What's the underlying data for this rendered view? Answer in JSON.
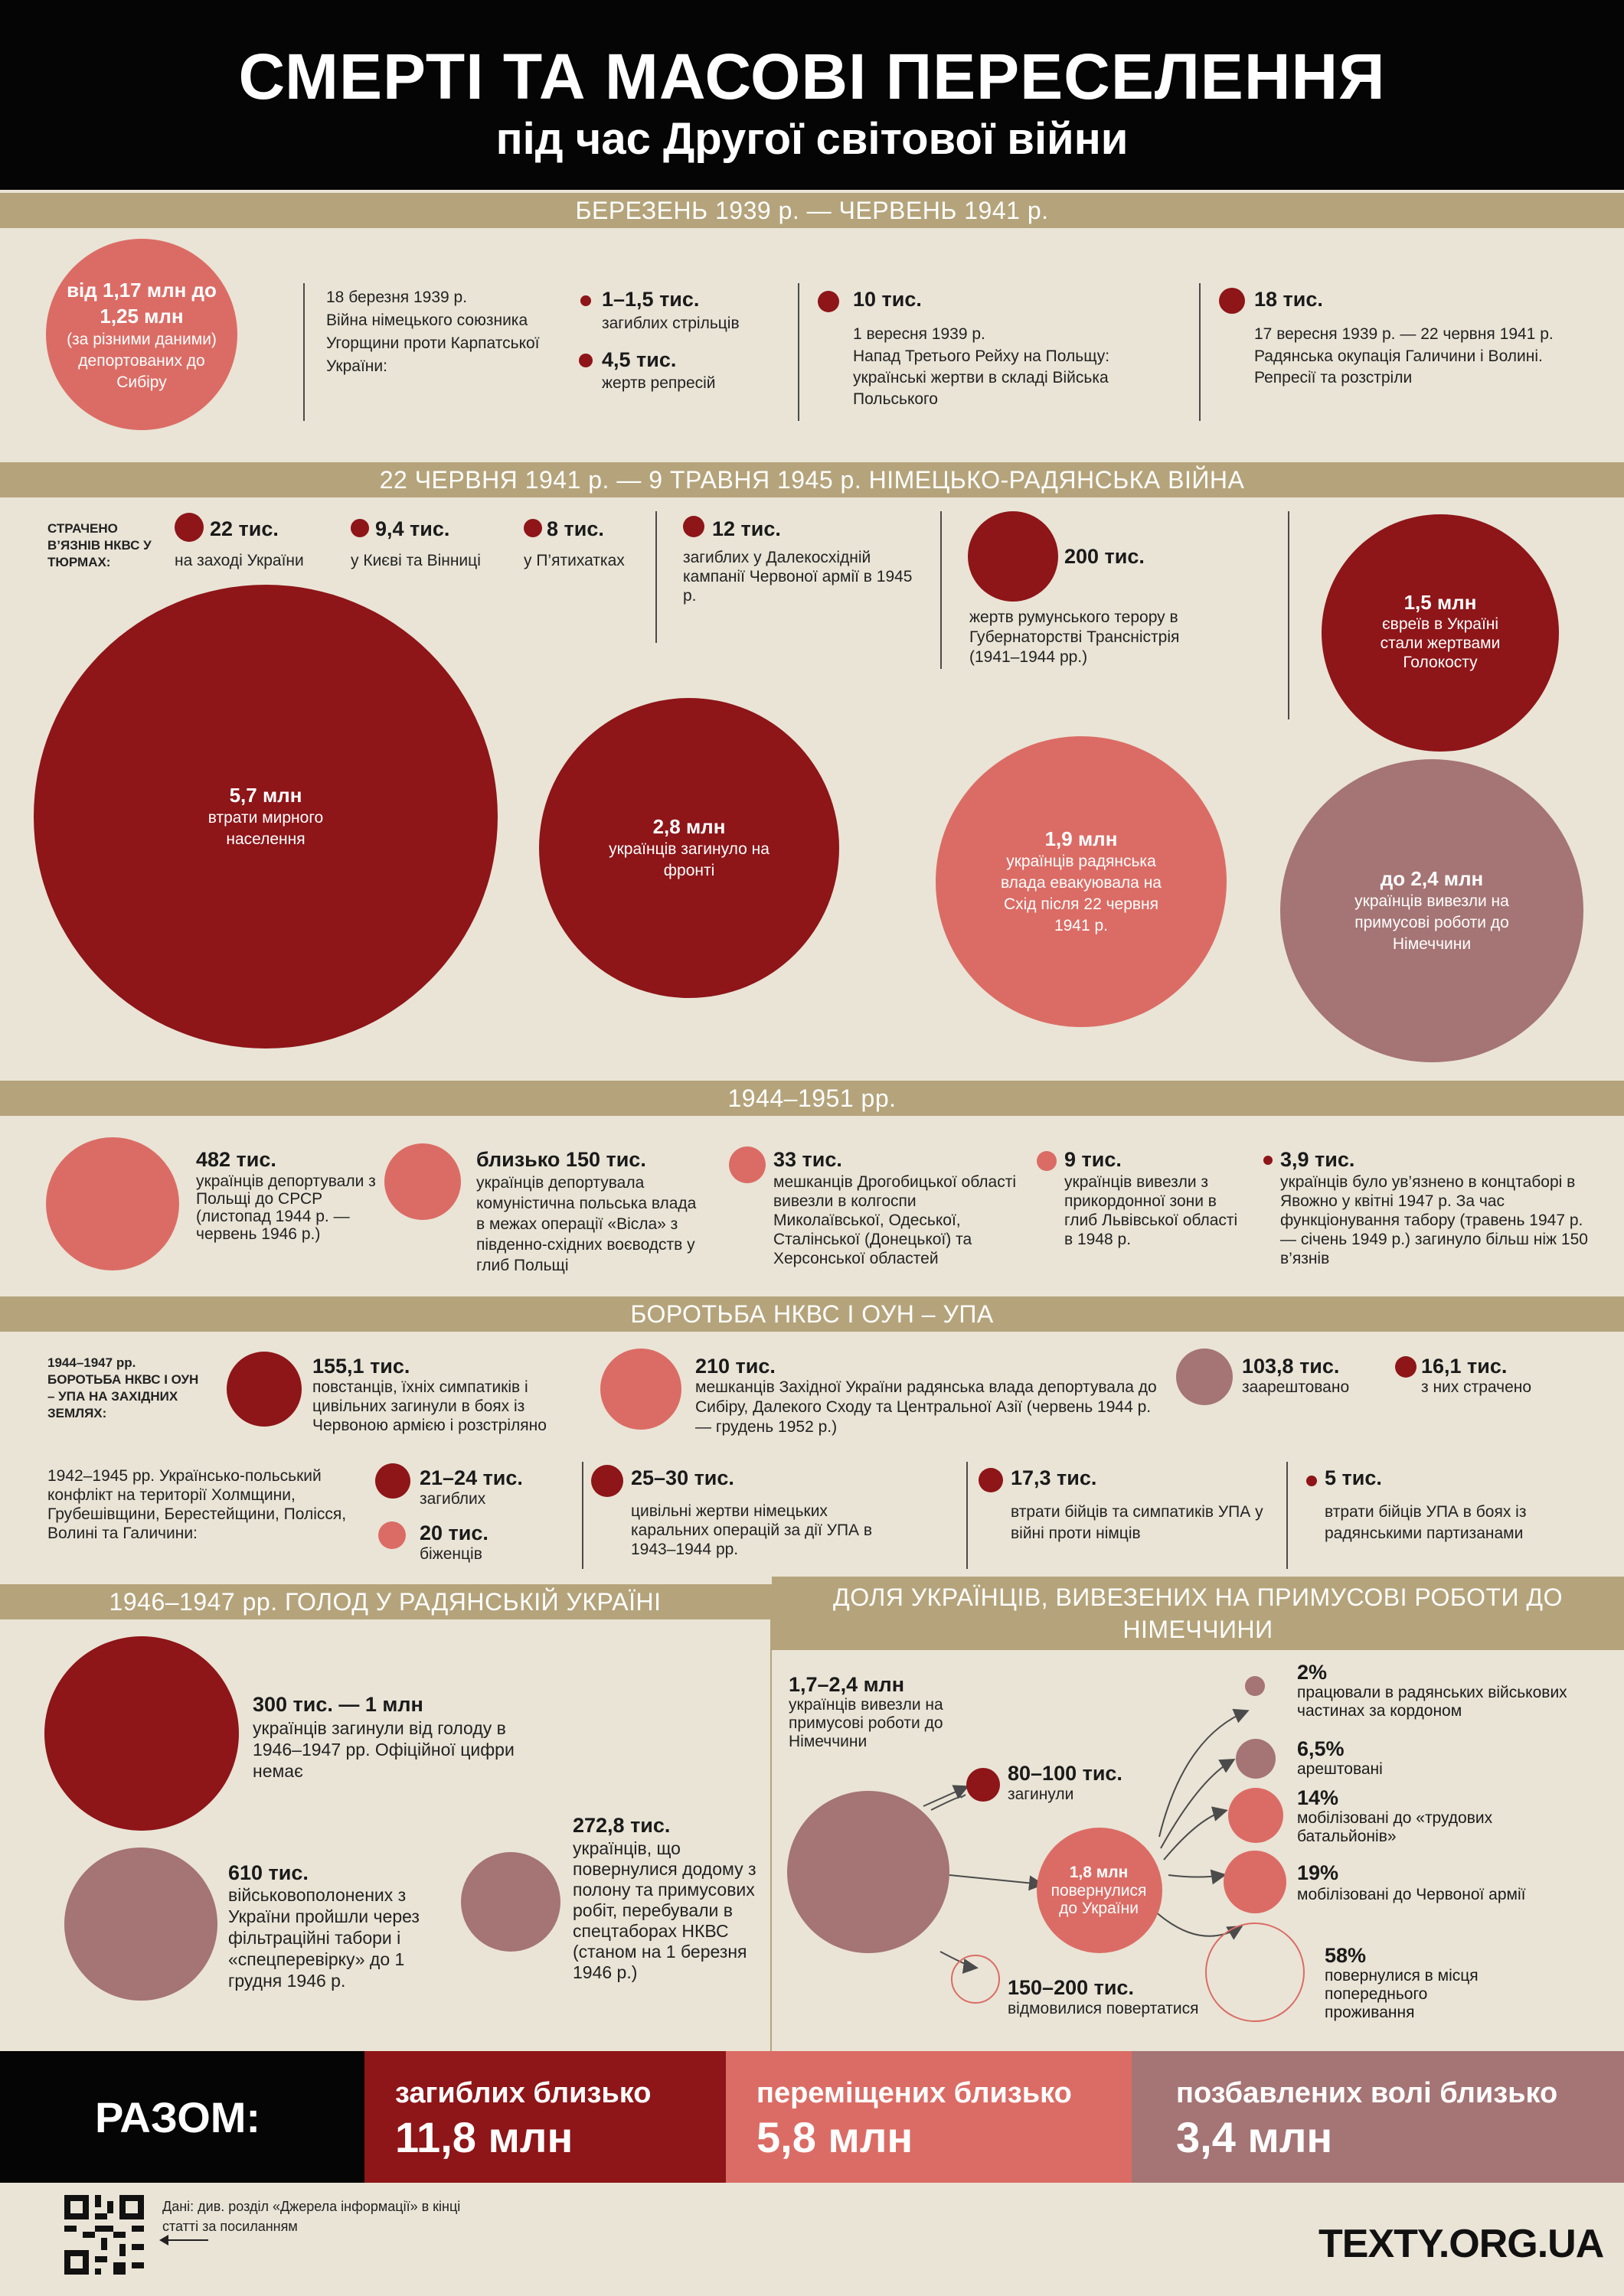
{
  "header": {
    "title": "СМЕРТІ ТА МАСОВІ ПЕРЕСЕЛЕННЯ",
    "subtitle": "під час Другої світової війни"
  },
  "section1": {
    "band": "БЕРЕЗЕНЬ 1939 р. — ЧЕРВЕНЬ 1941 р.",
    "deported_num": "від 1,17 млн до 1,25 млн",
    "deported_note": "(за різними даними)",
    "deported_label": "депортованих до Сибіру",
    "carpatho_date": "18 березня 1939 р.",
    "carpatho_text": "Війна німецького союзника Угорщини проти Карпатської України:",
    "riflemen_num": "1–1,5 тис.",
    "riflemen_label": "загиблих стрільців",
    "repr_num": "4,5 тис.",
    "repr_label": "жертв репресій",
    "poland_num": "10 тис.",
    "poland_date": "1 вересня 1939 р.",
    "poland_text": "Напад Третього Рейху на Польщу: українські жертви в складі Війська Польського",
    "occupation_num": "18 тис.",
    "occupation_date": "17 вересня 1939 р. — 22 червня 1941 р.",
    "occupation_text": "Радянська окупація Галичини і Волині. Репресії та розстріли"
  },
  "section2": {
    "band": "22 ЧЕРВНЯ 1941 р. — 9 ТРАВНЯ 1945 р. НІМЕЦЬКО-РАДЯНСЬКА ВІЙНА",
    "nkvd_title": "СТРАЧЕНО В’ЯЗНІВ НКВС У ТЮРМАХ:",
    "west_num": "22 тис.",
    "west_label": "на заході України",
    "kyiv_num": "9,4 тис.",
    "kyiv_label": "у Києві та Вінниці",
    "pyat_num": "8 тис.",
    "pyat_label": "у П’ятихатках",
    "fareast_num": "12 тис.",
    "fareast_label": "загиблих у Далекосхідній кампанії Червоної армії в 1945 р.",
    "romanian_num": "200 тис.",
    "romanian_label": "жертв румунського терору в Губернаторстві Трансністрія (1941–1944 рр.)",
    "holocaust_num": "1,5 млн",
    "holocaust_label": "євреїв в Україні стали жертвами Голокосту",
    "civil_num": "5,7 млн",
    "civil_label": "втрати мирного населення",
    "front_num": "2,8 млн",
    "front_label": "українців загинуло на фронті",
    "evac_num": "1,9 млн",
    "evac_label": "українців радянська влада евакуювала на Схід після 22 червня 1941 р.",
    "forced_num": "до 2,4 млн",
    "forced_label": "українців вивезли на примусові роботи до Німеччини"
  },
  "section3": {
    "band": "1944–1951 рр.",
    "items": [
      {
        "num": "482 тис.",
        "label": "українців депортували з Польщі до СРСР (листопад 1944 р. — червень 1946 р.)"
      },
      {
        "num": "близько 150 тис.",
        "label": "українців депортувала комуністична польська влада в межах операції «Вісла» з південно-східних воєводств у глиб Польщі"
      },
      {
        "num": "33 тис.",
        "label": "мешканців Дрогобицької області вивезли в колгоспи Миколаївської, Одеської, Сталінської (Донецької) та Херсонської областей"
      },
      {
        "num": "9 тис.",
        "label": "українців вивезли з прикордонної зони в глиб Львівської області в 1948 р."
      },
      {
        "num": "3,9 тис.",
        "label": "українців було ув’язнено в концтаборі в Явожно у квітні 1947 р. За час функціонування табору (травень 1947 р. — січень 1949 р.) загинуло більш ніж 150 в’язнів"
      }
    ]
  },
  "section4": {
    "band": "БОРОТЬБА НКВС І ОУН – УПА",
    "left_title": "1944–1947 рр. БОРОТЬБА НКВС І ОУН – УПА НА ЗАХІДНИХ ЗЕМЛЯХ:",
    "rebels_num": "155,1 тис.",
    "rebels_label": "повстанців, їхніх симпатиків і цивільних загинули в боях із Червоною армією і розстріляно",
    "deported_num": "210 тис.",
    "deported_label": "мешканців Західної України радянська влада депортувала до Сибіру, Далекого Сходу та Центральної Азії (червень 1944 р. — грудень 1952 р.)",
    "arrested_num": "103,8 тис.",
    "arrested_label": "заарештовано",
    "executed_num": "16,1 тис.",
    "executed_label": "з них страчено",
    "conflict_title": "1942–1945 рр. Українсько-польський конфлікт на території Холмщини, Грубешівщини, Берестейщини, Полісся, Волині та Галичини:",
    "dead_num": "21–24 тис.",
    "dead_label": "загиблих",
    "refugees_num": "20 тис.",
    "refugees_label": "біженців",
    "german_num": "25–30 тис.",
    "german_label": "цивільні жертви німецьких каральних операцій за дії УПА в 1943–1944 рр.",
    "upa_ger_num": "17,3 тис.",
    "upa_ger_label": "втрати бійців та симпатиків УПА у війні проти німців",
    "upa_part_num": "5 тис.",
    "upa_part_label": "втрати бійців УПА в боях із радянськими партизанами"
  },
  "section5": {
    "band": "1946–1947 рр. ГОЛОД У РАДЯНСЬКІЙ УКРАЇНІ",
    "famine_num": "300 тис. — 1 млн",
    "famine_label": "українців загинули від голоду в 1946–1947 рр. Офіційної цифри немає",
    "pow_num": "610 тис.",
    "pow_label": "військовополонених з України пройшли через фільтраційні табори і «спецперевірку» до 1 грудня 1946 р.",
    "returned_num": "272,8 тис.",
    "returned_label": "українців, що повернулися додому з полону та примусових робіт, перебували в спецтаборах НКВС (станом на 1 березня 1946 р.)"
  },
  "section6": {
    "band": "ДОЛЯ УКРАЇНЦІВ, ВИВЕЗЕНИХ НА ПРИМУСОВІ РОБОТИ ДО НІМЕЧЧИНИ",
    "total_num": "1,7–2,4 млн",
    "total_label": "українців вивезли на примусові роботи до Німеччини",
    "died_num": "80–100 тис.",
    "died_label": "загинули",
    "refused_num": "150–200 тис.",
    "refused_label": "відмовилися повертатися",
    "back_num": "1,8 млн",
    "back_label": "повернулися до України",
    "shares": [
      {
        "pct": "2%",
        "label": "працювали в радянських військових частинах за кордоном"
      },
      {
        "pct": "6,5%",
        "label": "арештовані"
      },
      {
        "pct": "14%",
        "label": "мобілізовані до «трудових батальйонів»"
      },
      {
        "pct": "19%",
        "label": "мобілізовані до Червоної армії"
      },
      {
        "pct": "58%",
        "label": "повернулися в місця попереднього проживання"
      }
    ]
  },
  "totals": {
    "title": "РАЗОМ:",
    "dead_label": "загиблих близько",
    "dead_num": "11,8 млн",
    "moved_label": "переміщених близько",
    "moved_num": "5,8 млн",
    "prison_label": "позбавлених волі близько",
    "prison_num": "3,4 млн"
  },
  "footer": {
    "source": "Дані: див. розділ «Джерела інформації» в кінці статті за посиланням",
    "brand": "TEXTY.ORG.UA"
  },
  "colors": {
    "dark": "#8e1518",
    "salmon": "#db6c65",
    "mauve": "#a57474",
    "band": "#b5a47b",
    "bg": "#e9e4d6"
  }
}
